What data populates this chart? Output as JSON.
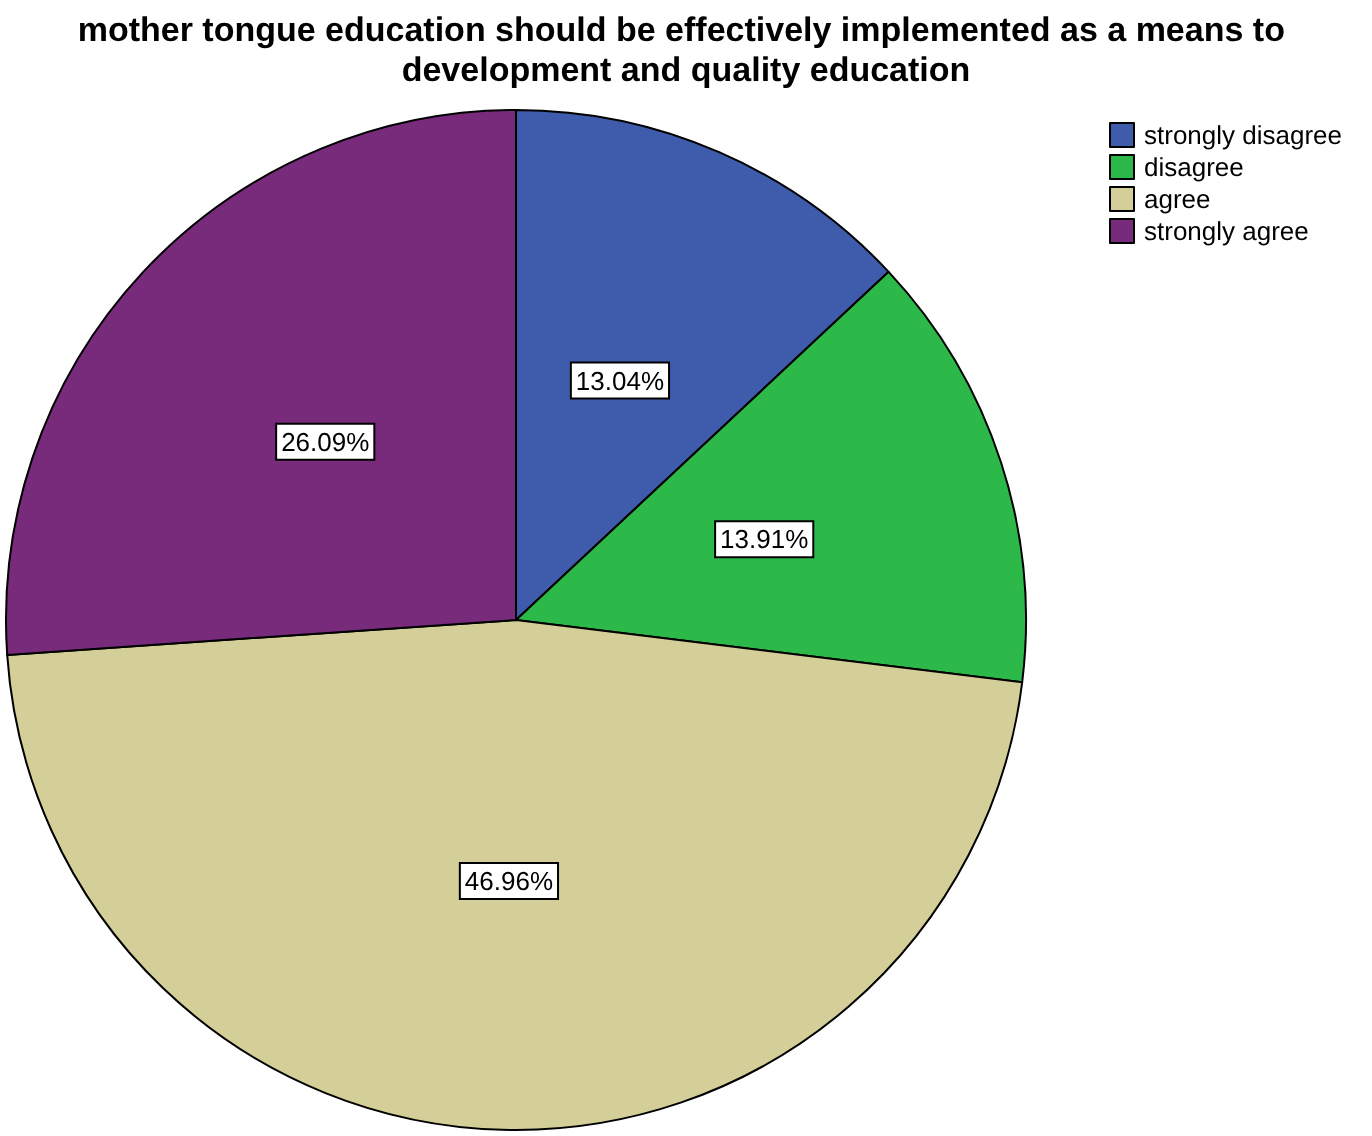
{
  "chart_data": {
    "type": "pie",
    "title": "mother tongue education should be effectively implemented as a means to development and quality education",
    "categories": [
      "strongly disagree",
      "disagree",
      "agree",
      "strongly agree"
    ],
    "values": [
      13.04,
      13.91,
      46.96,
      26.09
    ],
    "colors": [
      "#3f5bab",
      "#2db84a",
      "#d4cf98",
      "#782a7b"
    ],
    "value_labels": [
      "13.04%",
      "13.91%",
      "46.96%",
      "26.09%"
    ],
    "legend": "top right"
  }
}
